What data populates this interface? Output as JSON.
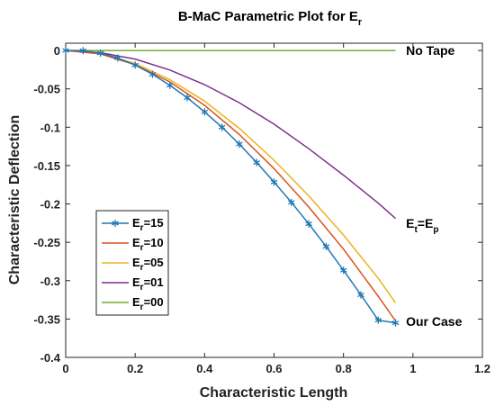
{
  "chart_data": {
    "type": "line",
    "title": "B-MaC Parametric Plot for Eᵣ",
    "title_main": "B-MaC Parametric Plot for E",
    "title_sub": "r",
    "xlabel": "Characteristic Length",
    "ylabel": "Characteristic Deflection",
    "xlim": [
      0,
      1.2
    ],
    "ylim": [
      -0.4,
      0.02
    ],
    "xticks": [
      0,
      0.2,
      0.4,
      0.6,
      0.8,
      1,
      1.2
    ],
    "xtick_labels": [
      "0",
      "0.2",
      "0.4",
      "0.6",
      "0.8",
      "1",
      "1.2"
    ],
    "yticks": [
      0,
      -0.05,
      -0.1,
      -0.15,
      -0.2,
      -0.25,
      -0.3,
      -0.35,
      -0.4
    ],
    "ytick_labels": [
      "0",
      "-0.05",
      "-0.1",
      "-0.15",
      "-0.2",
      "-0.25",
      "-0.3",
      "-0.35",
      "-0.4"
    ],
    "grid": false,
    "legend_position": "lower-left",
    "series": [
      {
        "name": "Eᵣ=15",
        "label_main": "E",
        "label_sub": "r",
        "label_rest": "=15",
        "color": "#1f77b4",
        "marker": "asterisk",
        "x": [
          0,
          0.05,
          0.1,
          0.15,
          0.2,
          0.25,
          0.3,
          0.35,
          0.4,
          0.45,
          0.5,
          0.55,
          0.6,
          0.65,
          0.7,
          0.75,
          0.8,
          0.85,
          0.9,
          0.95
        ],
        "y": [
          0,
          -0.0002,
          -0.0035,
          -0.0098,
          -0.019,
          -0.031,
          -0.0455,
          -0.0615,
          -0.08,
          -0.1,
          -0.122,
          -0.146,
          -0.1715,
          -0.198,
          -0.226,
          -0.2555,
          -0.2865,
          -0.3185,
          -0.3515,
          -0.355
        ]
      },
      {
        "name": "Eᵣ=10",
        "label_main": "E",
        "label_sub": "r",
        "label_rest": "=10",
        "color": "#d95319",
        "marker": "none",
        "x": [
          0,
          0.1,
          0.2,
          0.3,
          0.4,
          0.5,
          0.6,
          0.7,
          0.8,
          0.9,
          0.95
        ],
        "y": [
          0,
          -0.0045,
          -0.0185,
          -0.041,
          -0.0715,
          -0.1095,
          -0.154,
          -0.204,
          -0.259,
          -0.3205,
          -0.3525
        ]
      },
      {
        "name": "Eᵣ=05",
        "label_main": "E",
        "label_sub": "r",
        "label_rest": "=05",
        "color": "#edb120",
        "marker": "none",
        "x": [
          0,
          0.1,
          0.2,
          0.3,
          0.4,
          0.5,
          0.6,
          0.7,
          0.8,
          0.9,
          0.95
        ],
        "y": [
          0,
          -0.004,
          -0.017,
          -0.038,
          -0.066,
          -0.1015,
          -0.143,
          -0.1895,
          -0.2405,
          -0.297,
          -0.329
        ]
      },
      {
        "name": "Eᵣ=01",
        "label_main": "E",
        "label_sub": "r",
        "label_rest": "=01",
        "color": "#7e2f8e",
        "marker": "none",
        "x": [
          0,
          0.1,
          0.2,
          0.3,
          0.4,
          0.5,
          0.6,
          0.7,
          0.8,
          0.9,
          0.95
        ],
        "y": [
          0,
          -0.0028,
          -0.0112,
          -0.0255,
          -0.0445,
          -0.068,
          -0.096,
          -0.128,
          -0.1625,
          -0.199,
          -0.219
        ]
      },
      {
        "name": "Eᵣ=00",
        "label_main": "E",
        "label_sub": "r",
        "label_rest": "=00",
        "color": "#77ac30",
        "marker": "none",
        "x": [
          0,
          0.95
        ],
        "y": [
          0,
          0
        ]
      }
    ],
    "annotations": [
      {
        "text": "No Tape",
        "x": 0.98,
        "y": 0
      },
      {
        "main": "E",
        "sub1": "t",
        "mid": "=E",
        "sub2": "p",
        "x": 0.98,
        "y": -0.225
      },
      {
        "text": "Our Case",
        "x": 0.98,
        "y": -0.353
      }
    ]
  }
}
